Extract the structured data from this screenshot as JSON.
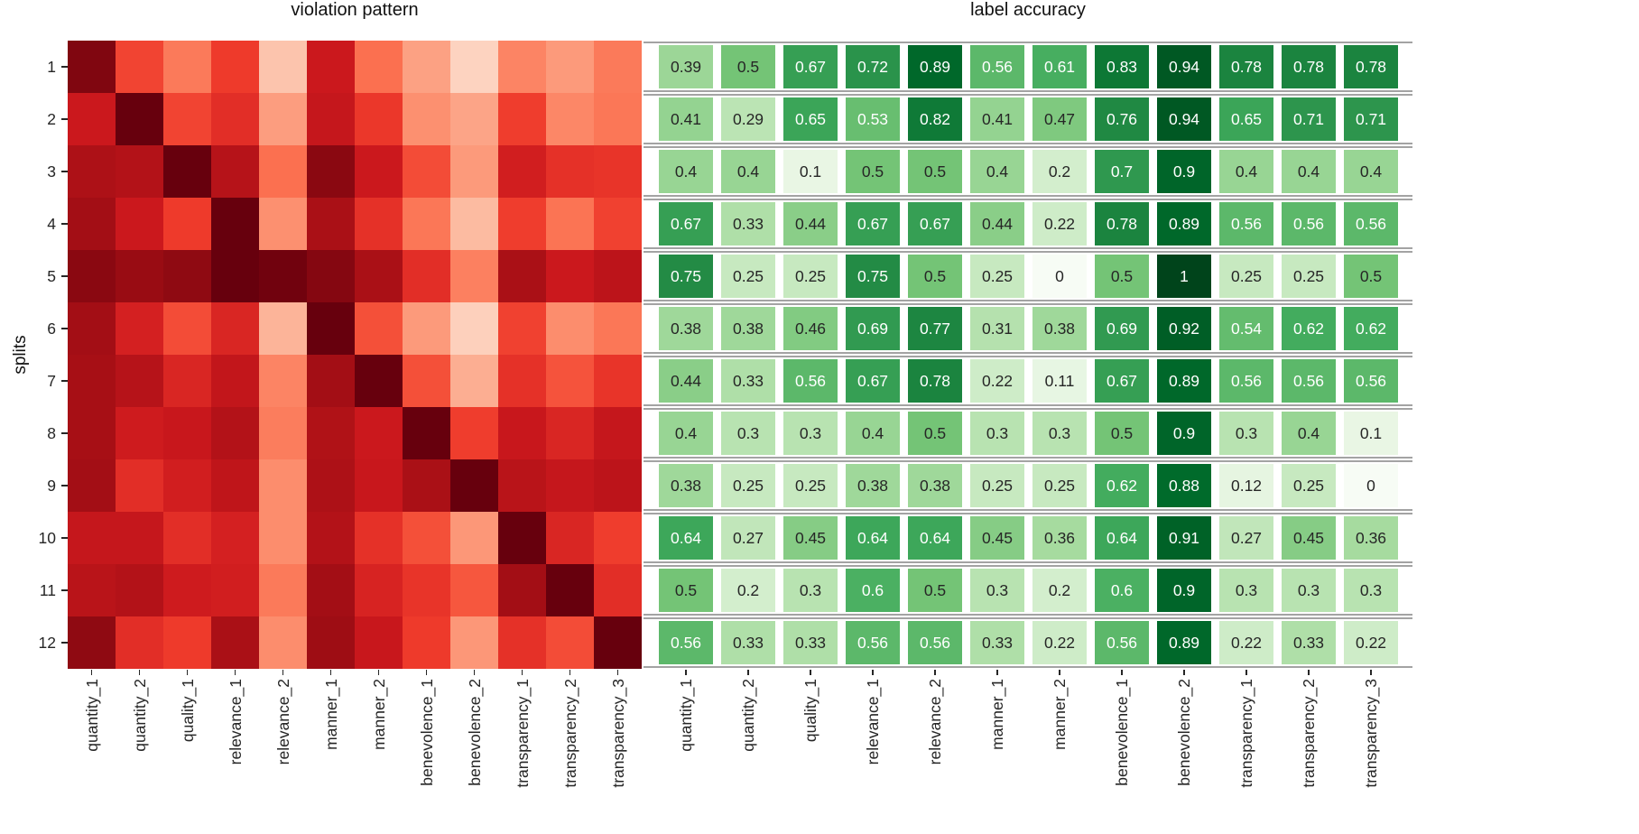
{
  "chart_data": [
    {
      "type": "heatmap",
      "title": "violation pattern",
      "xlabel": "",
      "ylabel": "splits",
      "rows": [
        "1",
        "2",
        "3",
        "4",
        "5",
        "6",
        "7",
        "8",
        "9",
        "10",
        "11",
        "12"
      ],
      "columns": [
        "quantity_1",
        "quantity_2",
        "quality_1",
        "relevance_1",
        "relevance_2",
        "manner_1",
        "manner_2",
        "benevolence_1",
        "benevolence_2",
        "transparency_1",
        "transparency_2",
        "transparency_3"
      ],
      "colormap": "Reds",
      "value_range": [
        0,
        1
      ],
      "annotations_shown": false,
      "values": [
        [
          0.95,
          0.6,
          0.45,
          0.63,
          0.22,
          0.75,
          0.48,
          0.33,
          0.17,
          0.42,
          0.35,
          0.45
        ],
        [
          0.75,
          1.0,
          0.6,
          0.67,
          0.34,
          0.77,
          0.64,
          0.38,
          0.32,
          0.62,
          0.41,
          0.46
        ],
        [
          0.85,
          0.83,
          1.0,
          0.82,
          0.48,
          0.93,
          0.75,
          0.58,
          0.35,
          0.73,
          0.66,
          0.65
        ],
        [
          0.88,
          0.75,
          0.63,
          1.0,
          0.38,
          0.86,
          0.66,
          0.46,
          0.25,
          0.62,
          0.47,
          0.61
        ],
        [
          0.93,
          0.9,
          0.92,
          1.0,
          0.98,
          0.94,
          0.86,
          0.67,
          0.43,
          0.86,
          0.75,
          0.8
        ],
        [
          0.88,
          0.72,
          0.58,
          0.7,
          0.27,
          1.0,
          0.57,
          0.35,
          0.18,
          0.61,
          0.39,
          0.46
        ],
        [
          0.87,
          0.82,
          0.7,
          0.78,
          0.42,
          0.88,
          1.0,
          0.57,
          0.29,
          0.66,
          0.56,
          0.65
        ],
        [
          0.87,
          0.74,
          0.76,
          0.83,
          0.44,
          0.84,
          0.75,
          1.0,
          0.62,
          0.76,
          0.7,
          0.77
        ],
        [
          0.88,
          0.67,
          0.73,
          0.79,
          0.39,
          0.85,
          0.76,
          0.86,
          1.0,
          0.81,
          0.77,
          0.8
        ],
        [
          0.77,
          0.77,
          0.67,
          0.72,
          0.39,
          0.83,
          0.66,
          0.57,
          0.36,
          1.0,
          0.7,
          0.62
        ],
        [
          0.81,
          0.83,
          0.74,
          0.73,
          0.45,
          0.88,
          0.71,
          0.65,
          0.55,
          0.88,
          1.0,
          0.67
        ],
        [
          0.92,
          0.67,
          0.63,
          0.86,
          0.39,
          0.89,
          0.76,
          0.63,
          0.36,
          0.66,
          0.58,
          1.0
        ]
      ]
    },
    {
      "type": "heatmap",
      "title": "label accuracy",
      "xlabel": "",
      "ylabel": "",
      "rows": [
        "1",
        "2",
        "3",
        "4",
        "5",
        "6",
        "7",
        "8",
        "9",
        "10",
        "11",
        "12"
      ],
      "columns": [
        "quantity_1",
        "quantity_2",
        "quality_1",
        "relevance_1",
        "relevance_2",
        "manner_1",
        "manner_2",
        "benevolence_1",
        "benevolence_2",
        "transparency_1",
        "transparency_2",
        "transparency_3"
      ],
      "colormap": "Greens",
      "value_range": [
        0,
        1
      ],
      "annotations_shown": true,
      "values": [
        [
          0.39,
          0.5,
          0.67,
          0.72,
          0.89,
          0.56,
          0.61,
          0.83,
          0.94,
          0.78,
          0.78,
          0.78
        ],
        [
          0.41,
          0.29,
          0.65,
          0.53,
          0.82,
          0.41,
          0.47,
          0.76,
          0.94,
          0.65,
          0.71,
          0.71
        ],
        [
          0.4,
          0.4,
          0.1,
          0.5,
          0.5,
          0.4,
          0.2,
          0.7,
          0.9,
          0.4,
          0.4,
          0.4
        ],
        [
          0.67,
          0.33,
          0.44,
          0.67,
          0.67,
          0.44,
          0.22,
          0.78,
          0.89,
          0.56,
          0.56,
          0.56
        ],
        [
          0.75,
          0.25,
          0.25,
          0.75,
          0.5,
          0.25,
          0,
          0.5,
          1,
          0.25,
          0.25,
          0.5
        ],
        [
          0.38,
          0.38,
          0.46,
          0.69,
          0.77,
          0.31,
          0.38,
          0.69,
          0.92,
          0.54,
          0.62,
          0.62
        ],
        [
          0.44,
          0.33,
          0.56,
          0.67,
          0.78,
          0.22,
          0.11,
          0.67,
          0.89,
          0.56,
          0.56,
          0.56
        ],
        [
          0.4,
          0.3,
          0.3,
          0.4,
          0.5,
          0.3,
          0.3,
          0.5,
          0.9,
          0.3,
          0.4,
          0.1
        ],
        [
          0.38,
          0.25,
          0.25,
          0.38,
          0.38,
          0.25,
          0.25,
          0.62,
          0.88,
          0.12,
          0.25,
          0
        ],
        [
          0.64,
          0.27,
          0.45,
          0.64,
          0.64,
          0.45,
          0.36,
          0.64,
          0.91,
          0.27,
          0.45,
          0.36
        ],
        [
          0.5,
          0.2,
          0.3,
          0.6,
          0.5,
          0.3,
          0.2,
          0.6,
          0.9,
          0.3,
          0.3,
          0.3
        ],
        [
          0.56,
          0.33,
          0.33,
          0.56,
          0.56,
          0.33,
          0.22,
          0.56,
          0.89,
          0.22,
          0.33,
          0.22
        ]
      ]
    }
  ],
  "colors": {
    "reds_anchors": [
      "#fff5f0",
      "#fee0d2",
      "#fcbba1",
      "#fc9272",
      "#fb6a4a",
      "#ef3b2c",
      "#cb181d",
      "#a50f15",
      "#67000d"
    ],
    "greens_anchors": [
      "#f7fcf5",
      "#e5f5e0",
      "#c7e9c0",
      "#a1d99b",
      "#74c476",
      "#41ab5d",
      "#238b45",
      "#006d2c",
      "#00441b"
    ],
    "separator_line": "#a3a3a3",
    "tick_mark": "#262626",
    "annotation_dark": "#262626",
    "annotation_light": "#ffffff"
  }
}
